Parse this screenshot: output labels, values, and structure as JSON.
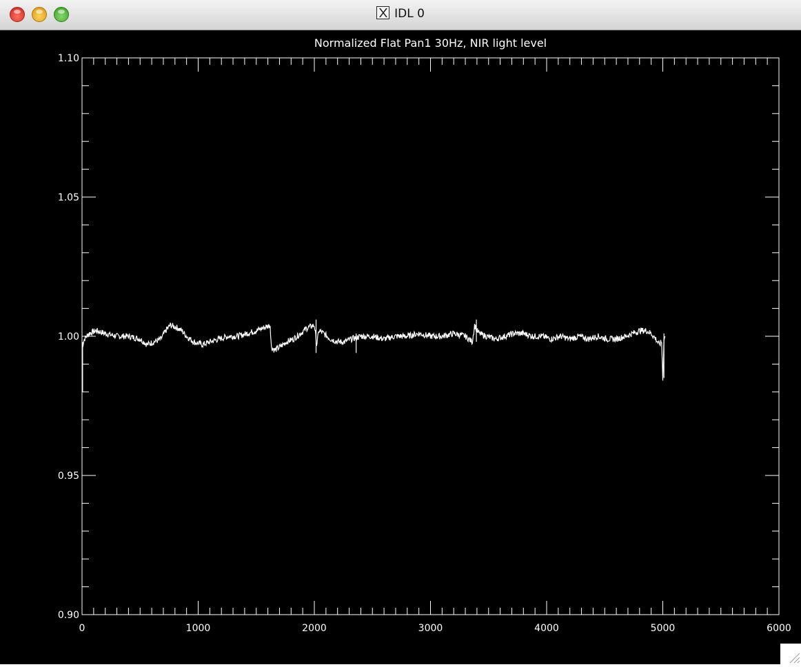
{
  "window": {
    "title": "IDL 0",
    "app_icon": "x11-icon"
  },
  "chart_data": {
    "type": "line",
    "title": "Normalized Flat Pan1 30Hz, NIR light level",
    "xlabel": "",
    "ylabel": "",
    "xlim": [
      0,
      6000
    ],
    "ylim": [
      0.9,
      1.1
    ],
    "x_ticks": [
      0,
      1000,
      2000,
      3000,
      4000,
      5000,
      6000
    ],
    "x_tick_labels": [
      "0",
      "1000",
      "2000",
      "3000",
      "4000",
      "5000",
      "6000"
    ],
    "y_ticks": [
      0.9,
      0.95,
      1.0,
      1.05,
      1.1
    ],
    "y_tick_labels": [
      "0.90",
      "0.95",
      "1.00",
      "1.05",
      "1.10"
    ],
    "x_minor_step": 100,
    "y_minor_step": 0.01,
    "grid": false,
    "background": "#000000",
    "foreground": "#ffffff",
    "series": [
      {
        "x": [
          0,
          20,
          60,
          120,
          200,
          300,
          400,
          500,
          560,
          620,
          680,
          720,
          760,
          820,
          860,
          900,
          960,
          1040,
          1100,
          1180,
          1260,
          1340,
          1420,
          1500,
          1560,
          1620,
          1630,
          1660,
          1700,
          1760,
          1820,
          1880,
          1940,
          2000,
          2020,
          2040,
          2080,
          2140,
          2200,
          2260,
          2320,
          2400,
          2500,
          2600,
          2700,
          2800,
          2900,
          3000,
          3100,
          3200,
          3300,
          3360,
          3380,
          3400,
          3420,
          3480,
          3560,
          3640,
          3720,
          3800,
          3880,
          3960,
          4040,
          4120,
          4200,
          4280,
          4360,
          4440,
          4520,
          4600,
          4680,
          4740,
          4800,
          4860,
          4900,
          4940,
          4970,
          4990,
          5000,
          5010,
          5020
        ],
        "y": [
          0.996,
          0.999,
          1.001,
          1.002,
          1.001,
          1.0,
          1.0,
          0.999,
          0.997,
          0.998,
          0.999,
          1.002,
          1.004,
          1.003,
          1.002,
          1.0,
          0.998,
          0.997,
          0.998,
          0.999,
          1.0,
          1.0,
          1.001,
          1.002,
          1.003,
          1.004,
          0.996,
          0.995,
          0.996,
          0.998,
          0.999,
          1.001,
          1.003,
          1.004,
          0.997,
          1.002,
          1.001,
          0.999,
          0.998,
          0.998,
          0.999,
          1.0,
          1.0,
          0.999,
          1.0,
          1.0,
          1.001,
          1.0,
          1.0,
          1.001,
          1.0,
          0.998,
          1.004,
          1.002,
          1.001,
          1.0,
          0.999,
          1.0,
          1.001,
          1.001,
          1.0,
          1.0,
          0.999,
          1.0,
          0.999,
          1.0,
          0.999,
          1.0,
          0.999,
          0.999,
          1.0,
          1.001,
          1.002,
          1.002,
          1.001,
          0.999,
          0.997,
          0.998,
          0.985,
          0.999,
          1.0
        ],
        "spikes": [
          {
            "x": 5,
            "y1": 0.98,
            "y2": 0.998
          },
          {
            "x": 2015,
            "y1": 0.994,
            "y2": 1.006
          },
          {
            "x": 2360,
            "y1": 0.994,
            "y2": 1.001
          },
          {
            "x": 3395,
            "y1": 0.998,
            "y2": 1.006
          },
          {
            "x": 5010,
            "y1": 0.985,
            "y2": 1.001
          }
        ]
      }
    ]
  }
}
